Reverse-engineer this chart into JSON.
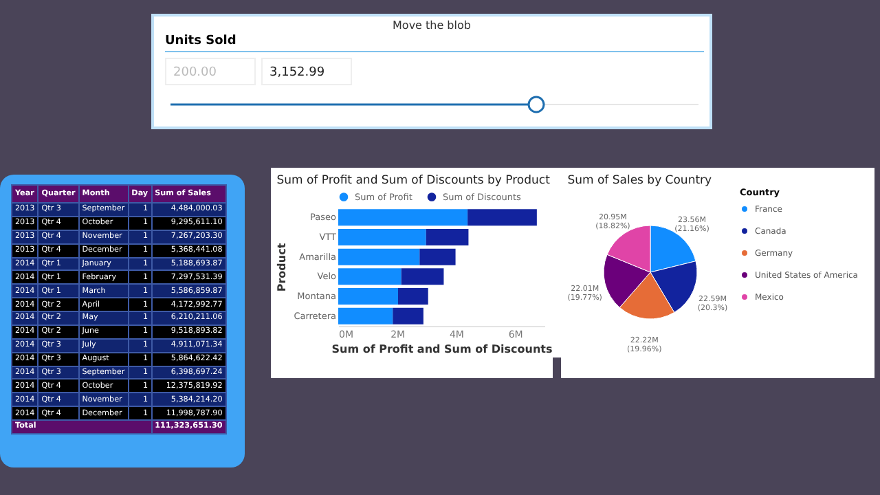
{
  "chart_data": [
    {
      "type": "other",
      "title": "Move the blob",
      "subtitle": "Units Sold",
      "annotations": [
        "200.00",
        "3,152.99"
      ]
    },
    {
      "type": "other",
      "categories": [
        "Year",
        "Quarter",
        "Month",
        "Day",
        "Sum of Sales"
      ],
      "annotations": [
        "2013",
        "Qtr 3",
        "September",
        "1",
        "4,484,000.03",
        "2013",
        "Qtr 4",
        "October",
        "1",
        "9,295,611.10",
        "2013",
        "Qtr 4",
        "November",
        "1",
        "7,267,203.30",
        "2013",
        "Qtr 4",
        "December",
        "1",
        "5,368,441.08",
        "2014",
        "Qtr 1",
        "January",
        "1",
        "5,188,693.87",
        "2014",
        "Qtr 1",
        "February",
        "1",
        "7,297,531.39",
        "2014",
        "Qtr 1",
        "March",
        "1",
        "5,586,859.87",
        "2014",
        "Qtr 2",
        "April",
        "1",
        "4,172,992.77",
        "2014",
        "Qtr 2",
        "May",
        "1",
        "6,210,211.06",
        "2014",
        "Qtr 2",
        "June",
        "1",
        "9,518,893.82",
        "2014",
        "Qtr 3",
        "July",
        "1",
        "4,911,071.34",
        "2014",
        "Qtr 3",
        "August",
        "1",
        "5,864,622.42",
        "2014",
        "Qtr 3",
        "September",
        "1",
        "6,398,697.24",
        "2014",
        "Qtr 4",
        "October",
        "1",
        "12,375,819.92",
        "2014",
        "Qtr 4",
        "November",
        "1",
        "5,384,214.20",
        "2014",
        "Qtr 4",
        "December",
        "1",
        "11,998,787.90",
        "Total",
        "111,323,651.30"
      ]
    },
    {
      "type": "bar",
      "orientation": "horizontal",
      "stacked": true,
      "title": "Sum of Profit and Sum of Discounts by Product",
      "xlabel": "Sum of Profit and Sum of Discounts",
      "ylabel": "Product",
      "categories": [
        "Paseo",
        "VTT",
        "Amarilla",
        "Velo",
        "Montana",
        "Carretera"
      ],
      "series": [
        {
          "name": "Sum of Profit",
          "color": "#118dff",
          "values": [
            4390000,
            2980000,
            2760000,
            2140000,
            2030000,
            1850000
          ]
        },
        {
          "name": "Sum of Discounts",
          "color": "#12239e",
          "values": [
            2350000,
            1440000,
            1220000,
            1440000,
            1020000,
            1040000
          ]
        }
      ],
      "xlim": [
        0,
        7000000
      ],
      "xticks": [
        {
          "value": 0,
          "label": "0M"
        },
        {
          "value": 2000000,
          "label": "2M"
        },
        {
          "value": 4000000,
          "label": "4M"
        },
        {
          "value": 6000000,
          "label": "6M"
        }
      ],
      "legend": "top left"
    },
    {
      "type": "pie",
      "title": "Sum of Sales by Country",
      "legend_title": "Country",
      "legend": "right",
      "categories": [
        "France",
        "Canada",
        "Germany",
        "United States of America",
        "Mexico"
      ],
      "values": [
        21.16,
        20.3,
        19.96,
        19.77,
        18.82
      ],
      "colors": [
        "#118dff",
        "#12239e",
        "#e66c37",
        "#6b007b",
        "#e044a7"
      ],
      "value_labels": [
        "23.56M (21.16%)",
        "22.59M (20.3%)",
        "22.22M (19.96%)",
        "22.01M (19.77%)",
        "20.95M (18.82%)"
      ]
    }
  ]
}
